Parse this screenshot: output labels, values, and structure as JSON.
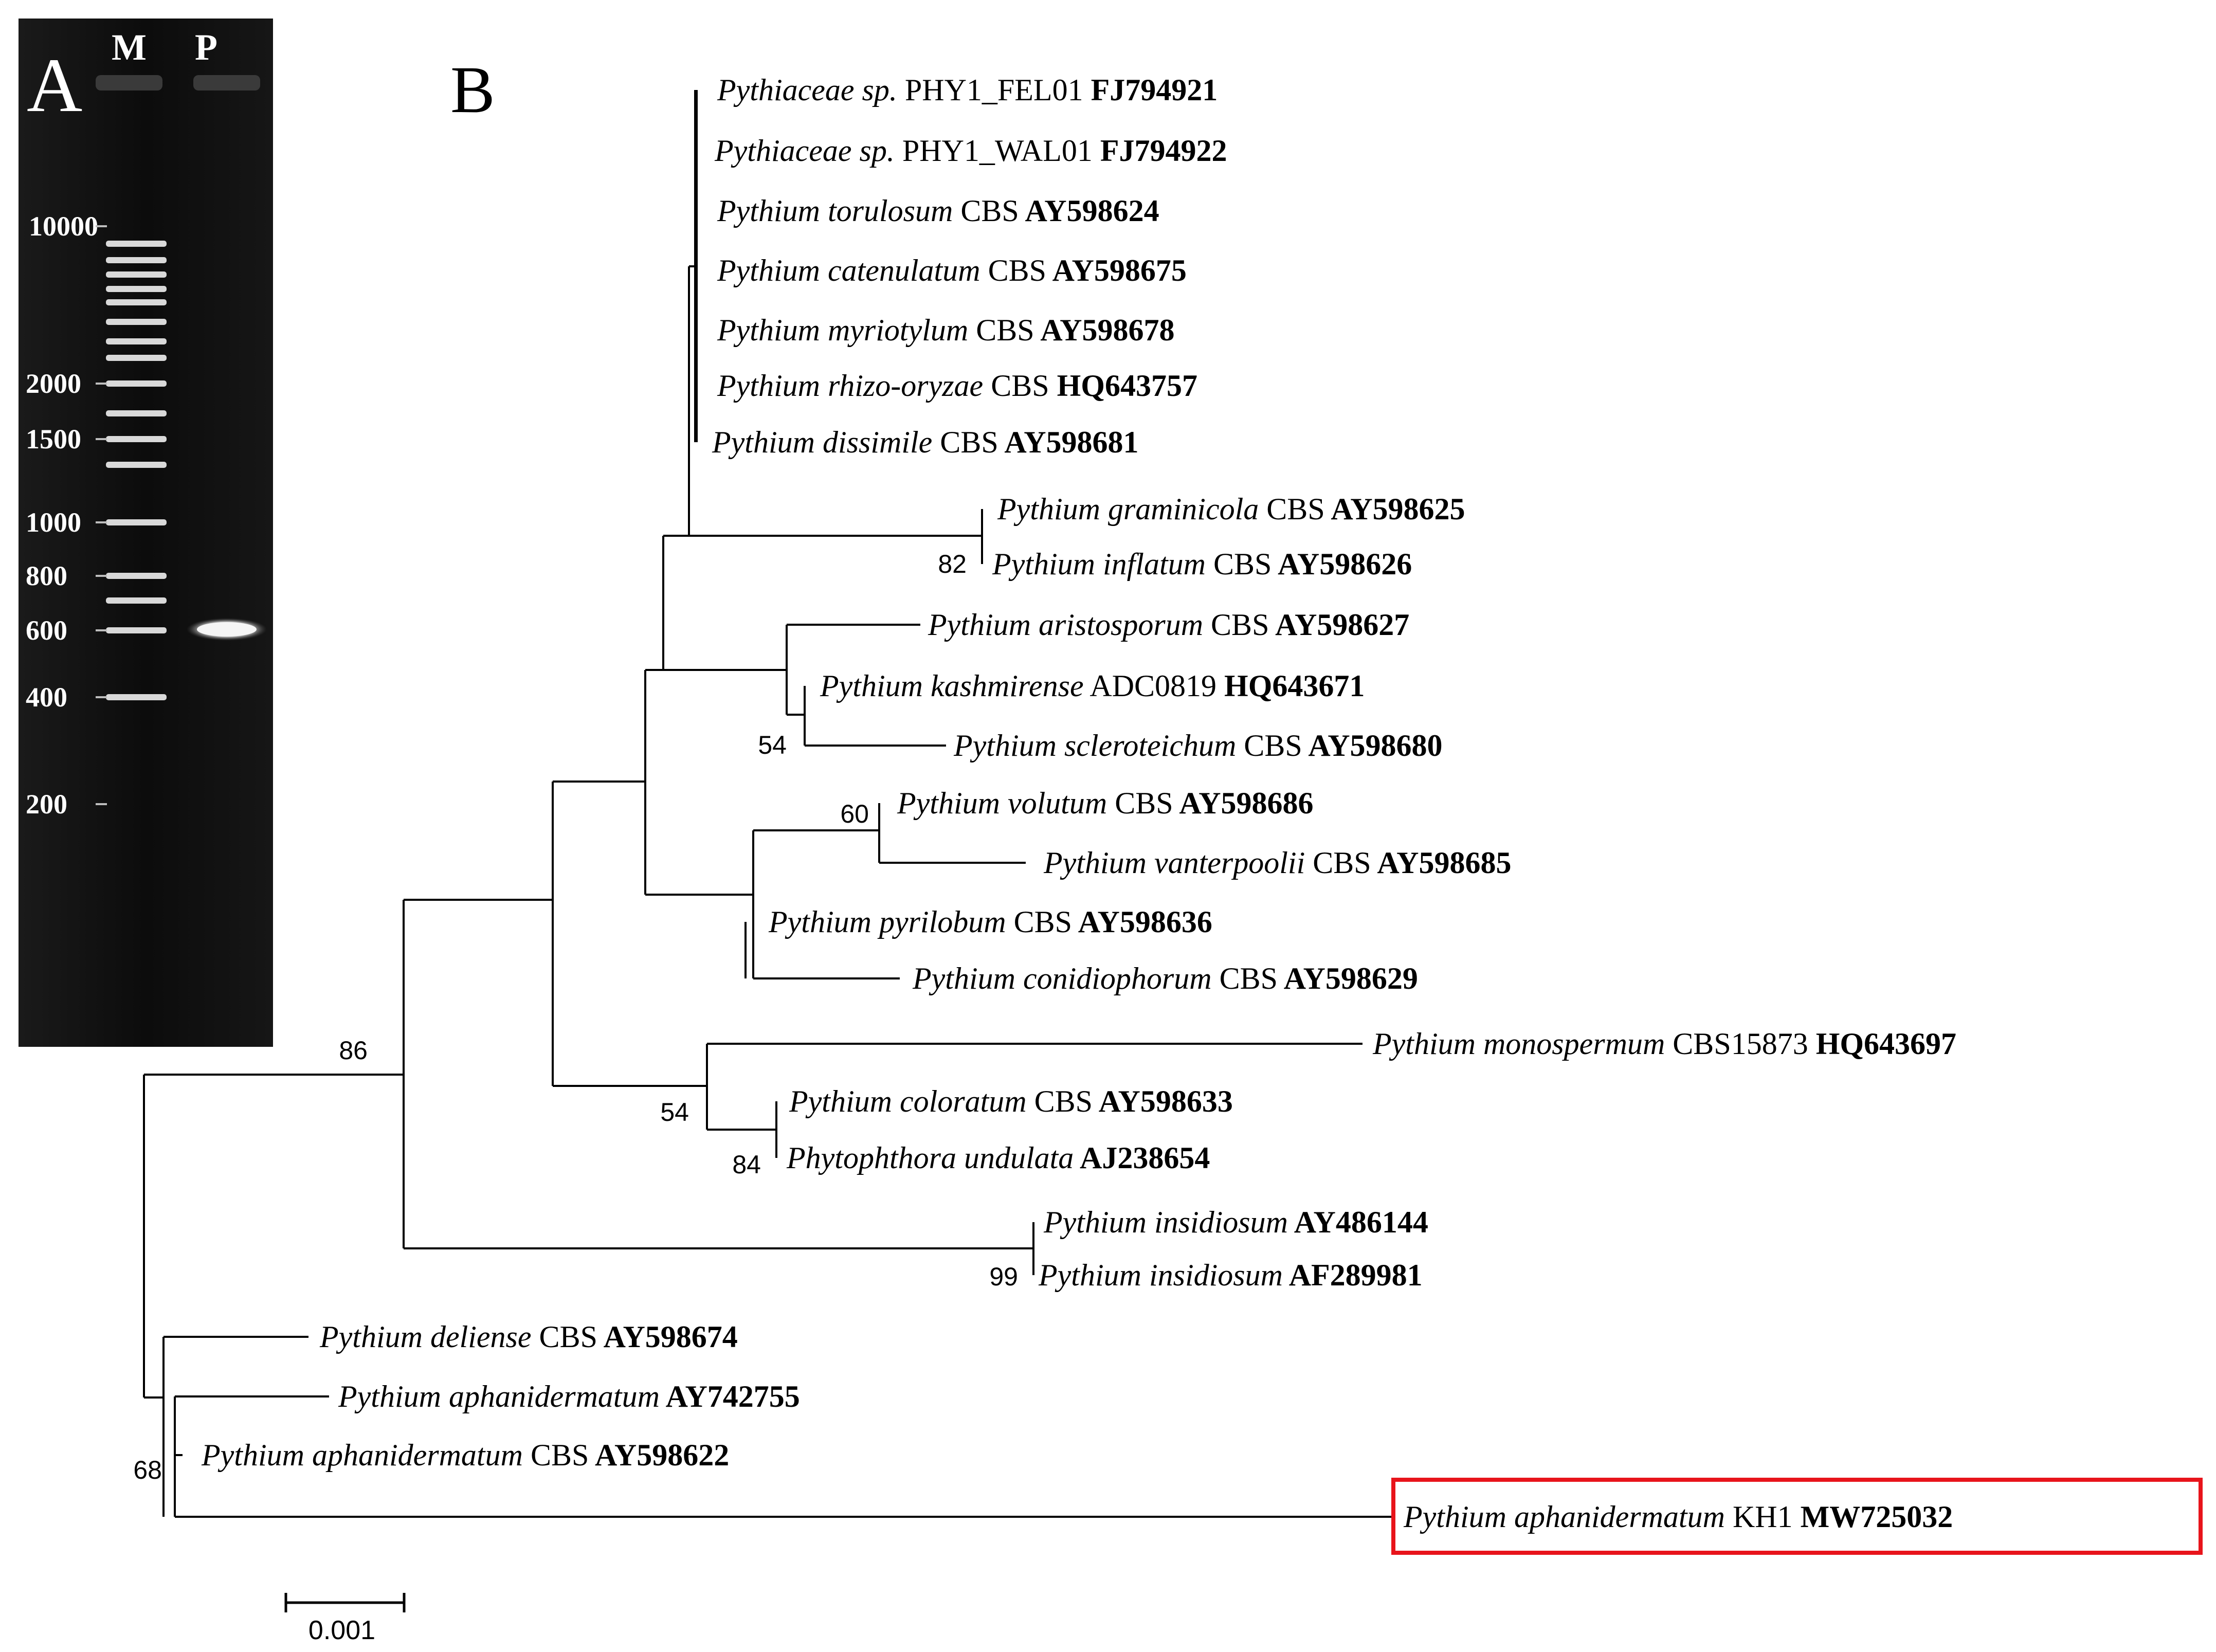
{
  "figure": {
    "panel_a": {
      "letter": "A",
      "lanes": [
        "M",
        "P"
      ],
      "ladder_labels": [
        "10000",
        "2000",
        "1500",
        "1000",
        "800",
        "600",
        "400",
        "200"
      ],
      "colors": {
        "gel_background": "#0e0e0e",
        "band": "#f2f2f2"
      }
    },
    "panel_b": {
      "letter": "B",
      "taxa": [
        {
          "name": "Pythiaceae sp.",
          "strain": "PHY1_FEL01",
          "accession": "FJ794921"
        },
        {
          "name": "Pythiaceae sp.",
          "strain": "PHY1_WAL01",
          "accession": "FJ794922"
        },
        {
          "name": "Pythium torulosum",
          "strain": "CBS",
          "accession": "AY598624"
        },
        {
          "name": "Pythium catenulatum",
          "strain": "CBS",
          "accession": "AY598675"
        },
        {
          "name": "Pythium myriotylum",
          "strain": "CBS",
          "accession": "AY598678"
        },
        {
          "name": "Pythium rhizo-oryzae",
          "strain": "CBS",
          "accession": "HQ643757"
        },
        {
          "name": "Pythium dissimile",
          "strain": "CBS",
          "accession": "AY598681"
        },
        {
          "name": "Pythium graminicola",
          "strain": "CBS",
          "accession": "AY598625"
        },
        {
          "name": "Pythium inflatum",
          "strain": "CBS",
          "accession": "AY598626"
        },
        {
          "name": "Pythium aristosporum",
          "strain": "CBS",
          "accession": "AY598627"
        },
        {
          "name": "Pythium kashmirense",
          "strain": "ADC0819",
          "accession": "HQ643671"
        },
        {
          "name": "Pythium scleroteichum",
          "strain": "CBS",
          "accession": "AY598680"
        },
        {
          "name": "Pythium volutum",
          "strain": "CBS",
          "accession": "AY598686"
        },
        {
          "name": "Pythium vanterpoolii",
          "strain": "CBS",
          "accession": "AY598685"
        },
        {
          "name": "Pythium pyrilobum",
          "strain": "CBS",
          "accession": "AY598636"
        },
        {
          "name": "Pythium conidiophorum",
          "strain": "CBS",
          "accession": "AY598629"
        },
        {
          "name": "Pythium monospermum",
          "strain": "CBS15873",
          "accession": "HQ643697"
        },
        {
          "name": "Pythium coloratum",
          "strain": "CBS",
          "accession": "AY598633"
        },
        {
          "name": "Phytophthora undulata",
          "strain": "",
          "accession": "AJ238654"
        },
        {
          "name": "Pythium insidiosum",
          "strain": "",
          "accession": "AY486144"
        },
        {
          "name": "Pythium insidiosum",
          "strain": "",
          "accession": "AF289981"
        },
        {
          "name": "Pythium deliense",
          "strain": "CBS",
          "accession": "AY598674"
        },
        {
          "name": "Pythium aphanidermatum",
          "strain": "",
          "accession": "AY742755"
        },
        {
          "name": "Pythium aphanidermatum",
          "strain": "CBS",
          "accession": "AY598622"
        },
        {
          "name": "Pythium aphanidermatum",
          "strain": "KH1",
          "accession": "MW725032",
          "highlighted": true
        }
      ],
      "bootstrap_values": [
        "82",
        "54",
        "60",
        "86",
        "54",
        "84",
        "99",
        "68"
      ],
      "scale_bar_label": "0.001",
      "colors": {
        "highlight_box": "#e8141b",
        "branch": "#000000"
      }
    }
  }
}
